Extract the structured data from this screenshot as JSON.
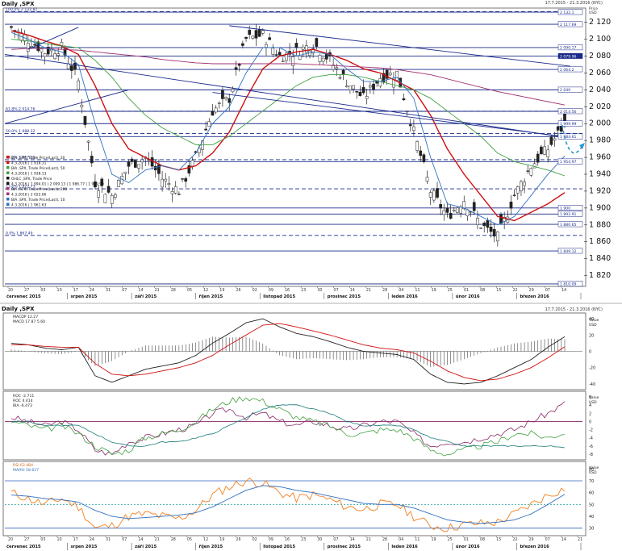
{
  "header": {
    "title": "Daily ,SPX",
    "range": "17.7.2015 - 21.3.2016 (NYC)",
    "price_label": "Price",
    "currency": "USD"
  },
  "sub1": {
    "title": "Daily ,SPX",
    "range": "17.7.2015 - 21.3.2016 (NYC)"
  },
  "price_axis": [
    "2 120",
    "2 100",
    "2 080",
    "2 060",
    "2 040",
    "2 020",
    "2 000",
    "1 980",
    "1 960",
    "1 940",
    "1 920",
    "1 900",
    "1 880",
    "1 860",
    "1 840",
    "1 820"
  ],
  "price_tags": [
    {
      "text": "2 132.1",
      "dark": false
    },
    {
      "text": "2 117.69",
      "dark": false
    },
    {
      "text": "2 090.17",
      "dark": false
    },
    {
      "text": "2 079.96",
      "dark": true
    },
    {
      "text": "2 064.2",
      "dark": false
    },
    {
      "text": "2 040",
      "dark": false
    },
    {
      "text": "2 014.56",
      "dark": false
    },
    {
      "text": "1 999.99",
      "dark": false
    },
    {
      "text": "1 984.61",
      "dark": false
    },
    {
      "text": "1 954.97",
      "dark": false
    },
    {
      "text": "1 900",
      "dark": false
    },
    {
      "text": "1 892.91",
      "dark": false
    },
    {
      "text": "1 880.65",
      "dark": false
    },
    {
      "text": "1 849.12",
      "dark": false
    },
    {
      "text": "1 810.09",
      "dark": false
    }
  ],
  "fib_labels": [
    "100.0%  2 132.81",
    "61.8%  2 014.76",
    "50.0%  1 988.32",
    "38.2%  1 957.25",
    "23.6%  1 922.73",
    "0.0%  1 867.49"
  ],
  "legend": [
    {
      "text": "BIA ,SPX, Trade Price(Last), 20",
      "color": "#d01010"
    },
    {
      "text": "4.3.2016 | 1 918.31",
      "color": "#d01010"
    },
    {
      "text": "BIA ,SPX, Trade Price(Last), 50",
      "color": "#40a040"
    },
    {
      "text": "4.3.2016 | 1 938.13",
      "color": "#40a040"
    },
    {
      "text": "OHLC ,SPX, Trade Price",
      "color": "#111111"
    },
    {
      "text": "4.3.2016 | 1 994.01 | 2 009.13 | 1 986.77 | 1 999.99",
      "color": "#111111"
    },
    {
      "text": "BIA ,SPX, Trade Price(Last), 200",
      "color": "#a03070"
    },
    {
      "text": "4.3.2016 | 2 022.06",
      "color": "#a03070"
    },
    {
      "text": "BIA ,SPX, Trade Price(Last), 10",
      "color": "#3070c0"
    },
    {
      "text": "4.3.2016 | 1 961.63",
      "color": "#3070c0"
    }
  ],
  "macd": {
    "legend": [
      "MACDP 12.27",
      "MACD 17.87  5.60"
    ],
    "axis_title": [
      "Value",
      "USD"
    ],
    "axis": [
      "40",
      "20",
      "0",
      "-20",
      "-40"
    ]
  },
  "roc": {
    "legend": [
      "ROC -2.711",
      "ROC 4.414",
      "BIA -6.473"
    ],
    "axis_title": [
      "Value",
      "USD"
    ],
    "axis": [
      "6",
      "4",
      "2",
      "0",
      "-2",
      "-4",
      "-6",
      "-8"
    ]
  },
  "rsi": {
    "legend": [
      "RSI 63.484",
      "MARSI 58.627"
    ],
    "axis_title": [
      "Value",
      "USD"
    ],
    "axis": [
      "80",
      "70",
      "60",
      "50",
      "40",
      "30"
    ]
  },
  "xaxis_top": {
    "days": [
      "20",
      "27",
      "03",
      "10",
      "17",
      "24",
      "31",
      "07",
      "14",
      "21",
      "28",
      "05",
      "12",
      "19",
      "26",
      "02",
      "09",
      "16",
      "23",
      "30",
      "07",
      "14",
      "21",
      "28",
      "04",
      "11",
      "19",
      "25",
      "01",
      "08",
      "15",
      "22",
      "29",
      "07",
      "14"
    ],
    "months": [
      "červenec 2015",
      "srpen 2015",
      "září 2015",
      "říjen 2015",
      "listopad 2015",
      "prosinec 2015",
      "leden 2016",
      "únor 2016",
      "březen 2016"
    ]
  },
  "xaxis_bottom": {
    "days": [
      "20",
      "27",
      "03",
      "10",
      "17",
      "24",
      "31",
      "07",
      "14",
      "21",
      "28",
      "05",
      "12",
      "19",
      "26",
      "02",
      "09",
      "16",
      "23",
      "30",
      "07",
      "14",
      "21",
      "28",
      "04",
      "11",
      "19",
      "25",
      "01",
      "08",
      "15",
      "22",
      "29",
      "07",
      "14",
      "21"
    ],
    "months": [
      "červenec 2015",
      "srpen 2015",
      "září 2015",
      "říjen 2015",
      "listopad 2015",
      "prosinec 2015",
      "leden 2016",
      "únor 2016",
      "březen 2016"
    ]
  },
  "chart_data": {
    "type": "line",
    "title": "Daily ,SPX",
    "ylabel": "Price USD",
    "ylim": [
      1810,
      2135
    ],
    "months": [
      "červenec 2015",
      "srpen 2015",
      "září 2015",
      "říjen 2015",
      "listopad 2015",
      "prosinec 2015",
      "leden 2016",
      "únor 2016",
      "březen 2016"
    ],
    "ohlc_last": "1 999.99",
    "x": [
      "2015-07-20",
      "2015-07-27",
      "2015-08-03",
      "2015-08-10",
      "2015-08-17",
      "2015-08-24",
      "2015-08-31",
      "2015-09-07",
      "2015-09-14",
      "2015-09-21",
      "2015-09-28",
      "2015-10-05",
      "2015-10-12",
      "2015-10-19",
      "2015-10-26",
      "2015-11-02",
      "2015-11-09",
      "2015-11-16",
      "2015-11-23",
      "2015-11-30",
      "2015-12-07",
      "2015-12-14",
      "2015-12-21",
      "2015-12-28",
      "2016-01-04",
      "2016-01-11",
      "2016-01-19",
      "2016-01-25",
      "2016-02-01",
      "2016-02-08",
      "2016-02-15",
      "2016-02-22",
      "2016-02-29",
      "2016-03-04"
    ],
    "series": [
      {
        "name": "OHLC ,SPX, Trade Price",
        "color": "#222222",
        "values": [
          2114,
          2100,
          2085,
          2090,
          2050,
          1930,
          1915,
          1950,
          1960,
          1935,
          1920,
          1960,
          2015,
          2030,
          2100,
          2105,
          2080,
          2085,
          2095,
          2075,
          2050,
          2030,
          2055,
          2060,
          1990,
          1920,
          1890,
          1910,
          1880,
          1865,
          1915,
          1950,
          1970,
          1999.99
        ]
      },
      {
        "name": "BIA ,SPX, Trade Price(Last), 20",
        "color": "#d01010",
        "values": [
          2110,
          2105,
          2098,
          2092,
          2082,
          2045,
          2000,
          1970,
          1960,
          1950,
          1945,
          1950,
          1965,
          1990,
          2030,
          2065,
          2080,
          2085,
          2088,
          2082,
          2075,
          2065,
          2060,
          2050,
          2040,
          2010,
          1970,
          1940,
          1915,
          1890,
          1885,
          1895,
          1905,
          1918.31
        ]
      },
      {
        "name": "BIA ,SPX, Trade Price(Last), 50",
        "color": "#40a040",
        "values": [
          2100,
          2098,
          2095,
          2092,
          2090,
          2075,
          2055,
          2030,
          2010,
          1995,
          1985,
          1975,
          1975,
          1985,
          2000,
          2015,
          2030,
          2045,
          2055,
          2058,
          2058,
          2055,
          2050,
          2045,
          2040,
          2030,
          2015,
          2000,
          1985,
          1965,
          1955,
          1950,
          1945,
          1938.13
        ]
      },
      {
        "name": "BIA ,SPX, Trade Price(Last), 200",
        "color": "#a03070",
        "values": [
          2088,
          2089,
          2089,
          2088,
          2087,
          2085,
          2083,
          2081,
          2079,
          2076,
          2074,
          2072,
          2071,
          2071,
          2071,
          2071,
          2071,
          2071,
          2070,
          2069,
          2068,
          2067,
          2066,
          2064,
          2061,
          2058,
          2053,
          2048,
          2043,
          2038,
          2034,
          2030,
          2026,
          2022.06
        ]
      },
      {
        "name": "BIA ,SPX, Trade Price(Last), 10",
        "color": "#3070c0",
        "values": [
          2108,
          2100,
          2090,
          2085,
          2070,
          2000,
          1940,
          1930,
          1945,
          1950,
          1945,
          1965,
          2000,
          2020,
          2060,
          2090,
          2090,
          2080,
          2085,
          2082,
          2065,
          2050,
          2050,
          2055,
          2030,
          1960,
          1905,
          1900,
          1890,
          1880,
          1890,
          1915,
          1940,
          1961.63
        ]
      }
    ],
    "fibonacci": [
      {
        "level": "100.0%",
        "price": 2132.81
      },
      {
        "level": "61.8%",
        "price": 2014.76
      },
      {
        "level": "50.0%",
        "price": 1988.32
      },
      {
        "level": "38.2%",
        "price": 1957.25
      },
      {
        "level": "23.6%",
        "price": 1922.73
      },
      {
        "level": "0.0%",
        "price": 1867.49
      }
    ],
    "macd": {
      "macdp": 12.27,
      "macd": 17.87,
      "signal": 5.6,
      "ylim": [
        -45,
        45
      ]
    },
    "roc": {
      "values": [
        -2.711,
        4.414,
        -6.473
      ],
      "ylim": [
        -9,
        7
      ]
    },
    "rsi": {
      "rsi": 63.484,
      "marsi": 58.627,
      "ylim": [
        25,
        85
      ]
    }
  }
}
